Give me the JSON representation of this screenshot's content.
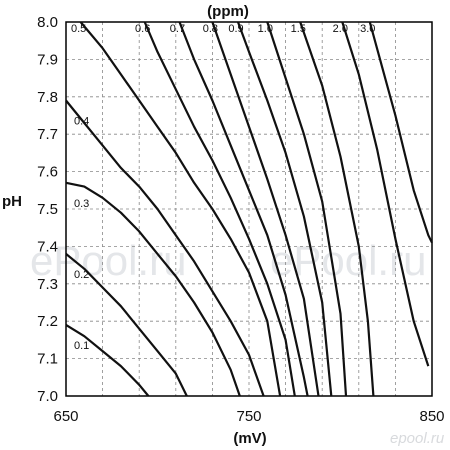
{
  "chart_data": {
    "type": "line",
    "title": "",
    "xlabel": "(mV)",
    "ylabel": "pH",
    "top_axis_label": "(ppm)",
    "xlim": [
      650,
      850
    ],
    "ylim": [
      7.0,
      8.0
    ],
    "grid": true,
    "x_ticks": [
      "650",
      "750",
      "850"
    ],
    "y_ticks": [
      "7.0",
      "7.1",
      "7.2",
      "7.3",
      "7.4",
      "7.5",
      "7.6",
      "7.7",
      "7.8",
      "7.9",
      "8.0"
    ],
    "series": [
      {
        "name": "0.1",
        "points": [
          [
            650,
            7.19
          ],
          [
            660,
            7.16
          ],
          [
            670,
            7.12
          ],
          [
            680,
            7.08
          ],
          [
            690,
            7.03
          ],
          [
            695,
            7.0
          ]
        ]
      },
      {
        "name": "0.2",
        "points": [
          [
            650,
            7.38
          ],
          [
            660,
            7.34
          ],
          [
            670,
            7.29
          ],
          [
            680,
            7.24
          ],
          [
            690,
            7.18
          ],
          [
            700,
            7.12
          ],
          [
            710,
            7.06
          ],
          [
            716,
            7.0
          ]
        ]
      },
      {
        "name": "0.3",
        "points": [
          [
            650,
            7.57
          ],
          [
            660,
            7.56
          ],
          [
            670,
            7.53
          ],
          [
            680,
            7.49
          ],
          [
            690,
            7.44
          ],
          [
            700,
            7.38
          ],
          [
            710,
            7.32
          ],
          [
            720,
            7.25
          ],
          [
            730,
            7.17
          ],
          [
            740,
            7.07
          ],
          [
            745,
            7.0
          ]
        ]
      },
      {
        "name": "0.4",
        "points": [
          [
            650,
            7.79
          ],
          [
            660,
            7.73
          ],
          [
            670,
            7.67
          ],
          [
            680,
            7.61
          ],
          [
            690,
            7.56
          ],
          [
            700,
            7.5
          ],
          [
            710,
            7.43
          ],
          [
            720,
            7.36
          ],
          [
            730,
            7.28
          ],
          [
            740,
            7.2
          ],
          [
            750,
            7.11
          ],
          [
            758,
            7.0
          ]
        ]
      },
      {
        "name": "0.5",
        "points": [
          [
            658,
            8.0
          ],
          [
            670,
            7.93
          ],
          [
            680,
            7.86
          ],
          [
            690,
            7.79
          ],
          [
            700,
            7.72
          ],
          [
            710,
            7.65
          ],
          [
            720,
            7.57
          ],
          [
            730,
            7.5
          ],
          [
            740,
            7.42
          ],
          [
            750,
            7.33
          ],
          [
            760,
            7.2
          ],
          [
            767,
            7.0
          ]
        ]
      },
      {
        "name": "0.6",
        "points": [
          [
            693,
            8.0
          ],
          [
            700,
            7.92
          ],
          [
            710,
            7.82
          ],
          [
            720,
            7.72
          ],
          [
            730,
            7.63
          ],
          [
            740,
            7.53
          ],
          [
            750,
            7.42
          ],
          [
            760,
            7.3
          ],
          [
            770,
            7.15
          ],
          [
            775,
            7.0
          ]
        ]
      },
      {
        "name": "0.7",
        "points": [
          [
            712,
            8.0
          ],
          [
            720,
            7.9
          ],
          [
            730,
            7.79
          ],
          [
            740,
            7.67
          ],
          [
            750,
            7.55
          ],
          [
            760,
            7.43
          ],
          [
            770,
            7.27
          ],
          [
            780,
            7.05
          ],
          [
            782,
            7.0
          ]
        ]
      },
      {
        "name": "0.8",
        "points": [
          [
            730,
            8.0
          ],
          [
            740,
            7.86
          ],
          [
            750,
            7.72
          ],
          [
            760,
            7.58
          ],
          [
            770,
            7.43
          ],
          [
            780,
            7.26
          ],
          [
            788,
            7.0
          ]
        ]
      },
      {
        "name": "0.9",
        "points": [
          [
            744,
            8.0
          ],
          [
            750,
            7.92
          ],
          [
            760,
            7.79
          ],
          [
            770,
            7.65
          ],
          [
            780,
            7.48
          ],
          [
            790,
            7.25
          ],
          [
            795,
            7.0
          ]
        ]
      },
      {
        "name": "1.0",
        "points": [
          [
            760,
            8.0
          ],
          [
            770,
            7.85
          ],
          [
            780,
            7.7
          ],
          [
            790,
            7.52
          ],
          [
            800,
            7.22
          ],
          [
            803,
            7.0
          ]
        ]
      },
      {
        "name": "1.5",
        "points": [
          [
            778,
            8.0
          ],
          [
            790,
            7.83
          ],
          [
            800,
            7.64
          ],
          [
            810,
            7.4
          ],
          [
            815,
            7.2
          ],
          [
            818,
            7.0
          ]
        ]
      },
      {
        "name": "2.0",
        "points": [
          [
            801,
            8.0
          ],
          [
            810,
            7.86
          ],
          [
            820,
            7.66
          ],
          [
            830,
            7.42
          ],
          [
            840,
            7.2
          ],
          [
            848,
            7.08
          ]
        ]
      },
      {
        "name": "3.0",
        "points": [
          [
            816,
            8.0
          ],
          [
            830,
            7.75
          ],
          [
            840,
            7.55
          ],
          [
            848,
            7.43
          ],
          [
            850,
            7.41
          ]
        ]
      }
    ]
  },
  "watermarks": [
    "ePool.ru",
    "ePool.ru"
  ],
  "logo_text": "epool.ru"
}
